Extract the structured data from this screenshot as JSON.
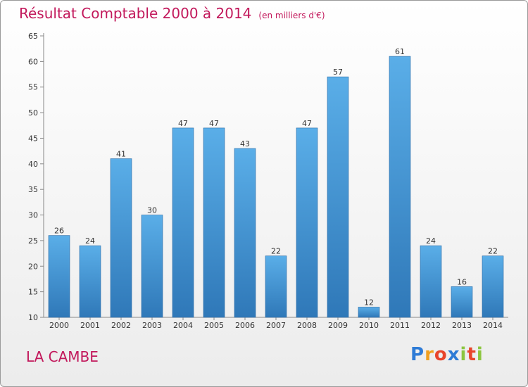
{
  "chart_data": {
    "type": "bar",
    "title": "Résultat Comptable 2000 à 2014",
    "unit": "(en milliers d'€)",
    "categories": [
      "2000",
      "2001",
      "2002",
      "2003",
      "2004",
      "2005",
      "2006",
      "2007",
      "2008",
      "2009",
      "2010",
      "2011",
      "2012",
      "2013",
      "2014"
    ],
    "values": [
      26,
      24,
      41,
      30,
      47,
      47,
      43,
      22,
      47,
      57,
      12,
      61,
      24,
      16,
      22
    ],
    "ylim": [
      10,
      65
    ],
    "yticks": [
      10,
      15,
      20,
      25,
      30,
      35,
      40,
      45,
      50,
      55,
      60,
      65
    ],
    "grid": false,
    "xlabel": "",
    "ylabel": ""
  },
  "location": "LA CAMBE",
  "brand": {
    "letters": [
      "P",
      "r",
      "o",
      "x",
      "i",
      "t",
      "i"
    ],
    "colors": [
      "#2e7bd6",
      "#f0a020",
      "#e8452c",
      "#2e7bd6",
      "#8cc63f",
      "#e8452c",
      "#8cc63f"
    ]
  },
  "colors": {
    "accent": "#c2185b",
    "bar_top": "#5aaee8",
    "bar_bottom": "#2f78b8"
  }
}
